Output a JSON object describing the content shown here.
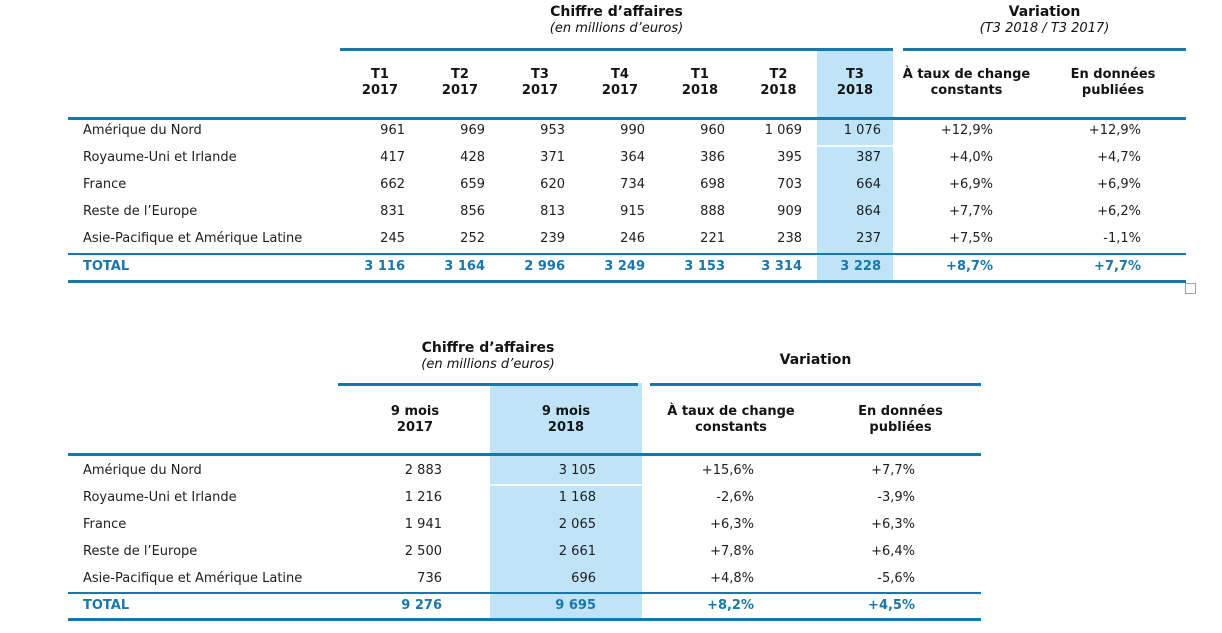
{
  "colors": {
    "rule_blue": "#1877AC",
    "highlight_blue": "#BFE4F8",
    "total_text_blue": "#1877AC",
    "body_text": "#1E1E1E"
  },
  "table1": {
    "ca_title": "Chiffre d’affaires",
    "ca_subtitle": "(en millions d’euros)",
    "var_title": "Variation",
    "var_subtitle": "(T3 2018 / T3 2017)",
    "quarter_headers": [
      [
        "T1",
        "2017"
      ],
      [
        "T2",
        "2017"
      ],
      [
        "T3",
        "2017"
      ],
      [
        "T4",
        "2017"
      ],
      [
        "T1",
        "2018"
      ],
      [
        "T2",
        "2018"
      ],
      [
        "T3",
        "2018"
      ]
    ],
    "variation_headers": [
      [
        "À taux de change",
        "constants"
      ],
      [
        "En données",
        "publiées"
      ]
    ],
    "rows": [
      {
        "label": "Amérique du Nord",
        "quarters": [
          "961",
          "969",
          "953",
          "990",
          "960",
          "1 069",
          "1 076"
        ],
        "variations": [
          "+12,9%",
          "+12,9%"
        ]
      },
      {
        "label": "Royaume-Uni et Irlande",
        "quarters": [
          "417",
          "428",
          "371",
          "364",
          "386",
          "395",
          "387"
        ],
        "variations": [
          "+4,0%",
          "+4,7%"
        ]
      },
      {
        "label": "France",
        "quarters": [
          "662",
          "659",
          "620",
          "734",
          "698",
          "703",
          "664"
        ],
        "variations": [
          "+6,9%",
          "+6,9%"
        ]
      },
      {
        "label": "Reste de l’Europe",
        "quarters": [
          "831",
          "856",
          "813",
          "915",
          "888",
          "909",
          "864"
        ],
        "variations": [
          "+7,7%",
          "+6,2%"
        ]
      },
      {
        "label": "Asie-Pacifique et Amérique Latine",
        "quarters": [
          "245",
          "252",
          "239",
          "246",
          "221",
          "238",
          "237"
        ],
        "variations": [
          "+7,5%",
          "-1,1%"
        ]
      }
    ],
    "total": {
      "label": "TOTAL",
      "quarters": [
        "3 116",
        "3 164",
        "2 996",
        "3 249",
        "3 153",
        "3 314",
        "3 228"
      ],
      "variations": [
        "+8,7%",
        "+7,7%"
      ]
    }
  },
  "table2": {
    "ca_title": "Chiffre d’affaires",
    "ca_subtitle": "(en millions d’euros)",
    "var_title": "Variation",
    "period_headers": [
      [
        "9 mois",
        "2017"
      ],
      [
        "9 mois",
        "2018"
      ]
    ],
    "variation_headers": [
      [
        "À taux de change",
        "constants"
      ],
      [
        "En données",
        "publiées"
      ]
    ],
    "rows": [
      {
        "label": "Amérique du Nord",
        "values": [
          "2 883",
          "3 105"
        ],
        "variations": [
          "+15,6%",
          "+7,7%"
        ]
      },
      {
        "label": "Royaume-Uni et Irlande",
        "values": [
          "1 216",
          "1 168"
        ],
        "variations": [
          "-2,6%",
          "-3,9%"
        ]
      },
      {
        "label": "France",
        "values": [
          "1 941",
          "2 065"
        ],
        "variations": [
          "+6,3%",
          "+6,3%"
        ]
      },
      {
        "label": "Reste de l’Europe",
        "values": [
          "2 500",
          "2 661"
        ],
        "variations": [
          "+7,8%",
          "+6,4%"
        ]
      },
      {
        "label": "Asie-Pacifique et Amérique Latine",
        "values": [
          "736",
          "696"
        ],
        "variations": [
          "+4,8%",
          "-5,6%"
        ]
      }
    ],
    "total": {
      "label": "TOTAL",
      "values": [
        "9 276",
        "9 695"
      ],
      "variations": [
        "+8,2%",
        "+4,5%"
      ]
    }
  }
}
